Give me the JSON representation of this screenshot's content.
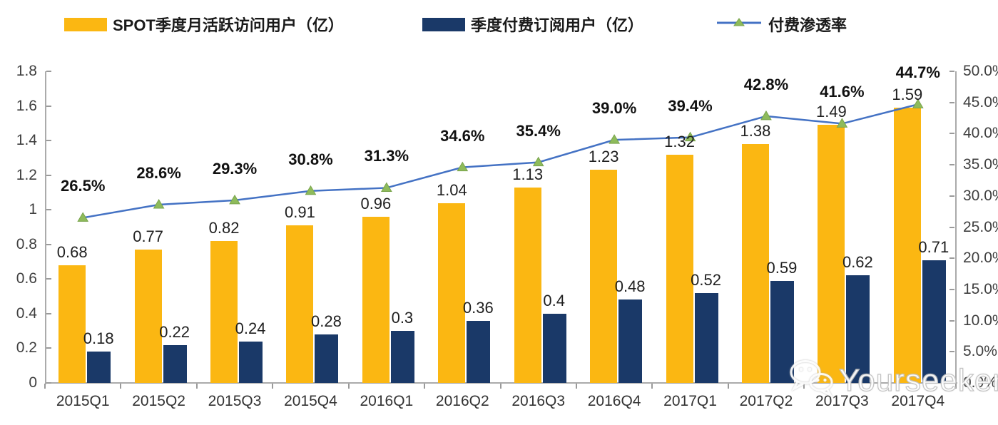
{
  "legend": {
    "items": [
      {
        "label": "SPOT季度月活跃访问用户（亿）",
        "type": "bar",
        "color": "#FBB712"
      },
      {
        "label": "季度付费订阅用户（亿）",
        "type": "bar",
        "color": "#1A3968"
      },
      {
        "label": "付费渗透率",
        "type": "line",
        "color": "#4472C4",
        "marker_color": "#8EBB5B"
      }
    ]
  },
  "chart_data": {
    "type": "combo-bar-line",
    "categories": [
      "2015Q1",
      "2015Q2",
      "2015Q3",
      "2015Q4",
      "2016Q1",
      "2016Q2",
      "2016Q3",
      "2016Q4",
      "2017Q1",
      "2017Q2",
      "2017Q3",
      "2017Q4"
    ],
    "series": [
      {
        "name": "SPOT季度月活跃访问用户（亿）",
        "type": "bar",
        "axis": "left",
        "color": "#FBB712",
        "values": [
          0.68,
          0.77,
          0.82,
          0.91,
          0.96,
          1.04,
          1.13,
          1.23,
          1.32,
          1.38,
          1.49,
          1.59
        ],
        "labels": [
          "0.68",
          "0.77",
          "0.82",
          "0.91",
          "0.96",
          "1.04",
          "1.13",
          "1.23",
          "1.32",
          "1.38",
          "1.49",
          "1.59"
        ]
      },
      {
        "name": "季度付费订阅用户（亿）",
        "type": "bar",
        "axis": "left",
        "color": "#1A3968",
        "values": [
          0.18,
          0.22,
          0.24,
          0.28,
          0.3,
          0.36,
          0.4,
          0.48,
          0.52,
          0.59,
          0.62,
          0.71
        ],
        "labels": [
          "0.18",
          "0.22",
          "0.24",
          "0.28",
          "0.3",
          "0.36",
          "0.4",
          "0.48",
          "0.52",
          "0.59",
          "0.62",
          "0.71"
        ]
      },
      {
        "name": "付费渗透率",
        "type": "line",
        "axis": "right",
        "color": "#4472C4",
        "marker": "triangle-up",
        "marker_color": "#8EBB5B",
        "values": [
          26.5,
          28.6,
          29.3,
          30.8,
          31.3,
          34.6,
          35.4,
          39.0,
          39.4,
          42.8,
          41.6,
          44.7
        ],
        "labels": [
          "26.5%",
          "28.6%",
          "29.3%",
          "30.8%",
          "31.3%",
          "34.6%",
          "35.4%",
          "39.0%",
          "39.4%",
          "42.8%",
          "41.6%",
          "44.7%"
        ]
      }
    ],
    "left_axis": {
      "min": 0,
      "max": 1.8,
      "step": 0.2,
      "tick_labels": [
        "1.8",
        "1.6",
        "1.4",
        "1.2",
        "1",
        "0.8",
        "0.6",
        "0.4",
        "0.2",
        "0"
      ]
    },
    "right_axis": {
      "min": 0,
      "max": 50,
      "step": 5,
      "tick_labels": [
        "50.0%",
        "45.0%",
        "40.0%",
        "35.0%",
        "30.0%",
        "25.0%",
        "20.0%",
        "15.0%",
        "10.0%",
        "5.0%",
        "0.0%"
      ]
    },
    "grid": false,
    "legend_position": "top"
  },
  "watermark": {
    "text": "Yourseeker",
    "icon": "wechat-icon"
  }
}
